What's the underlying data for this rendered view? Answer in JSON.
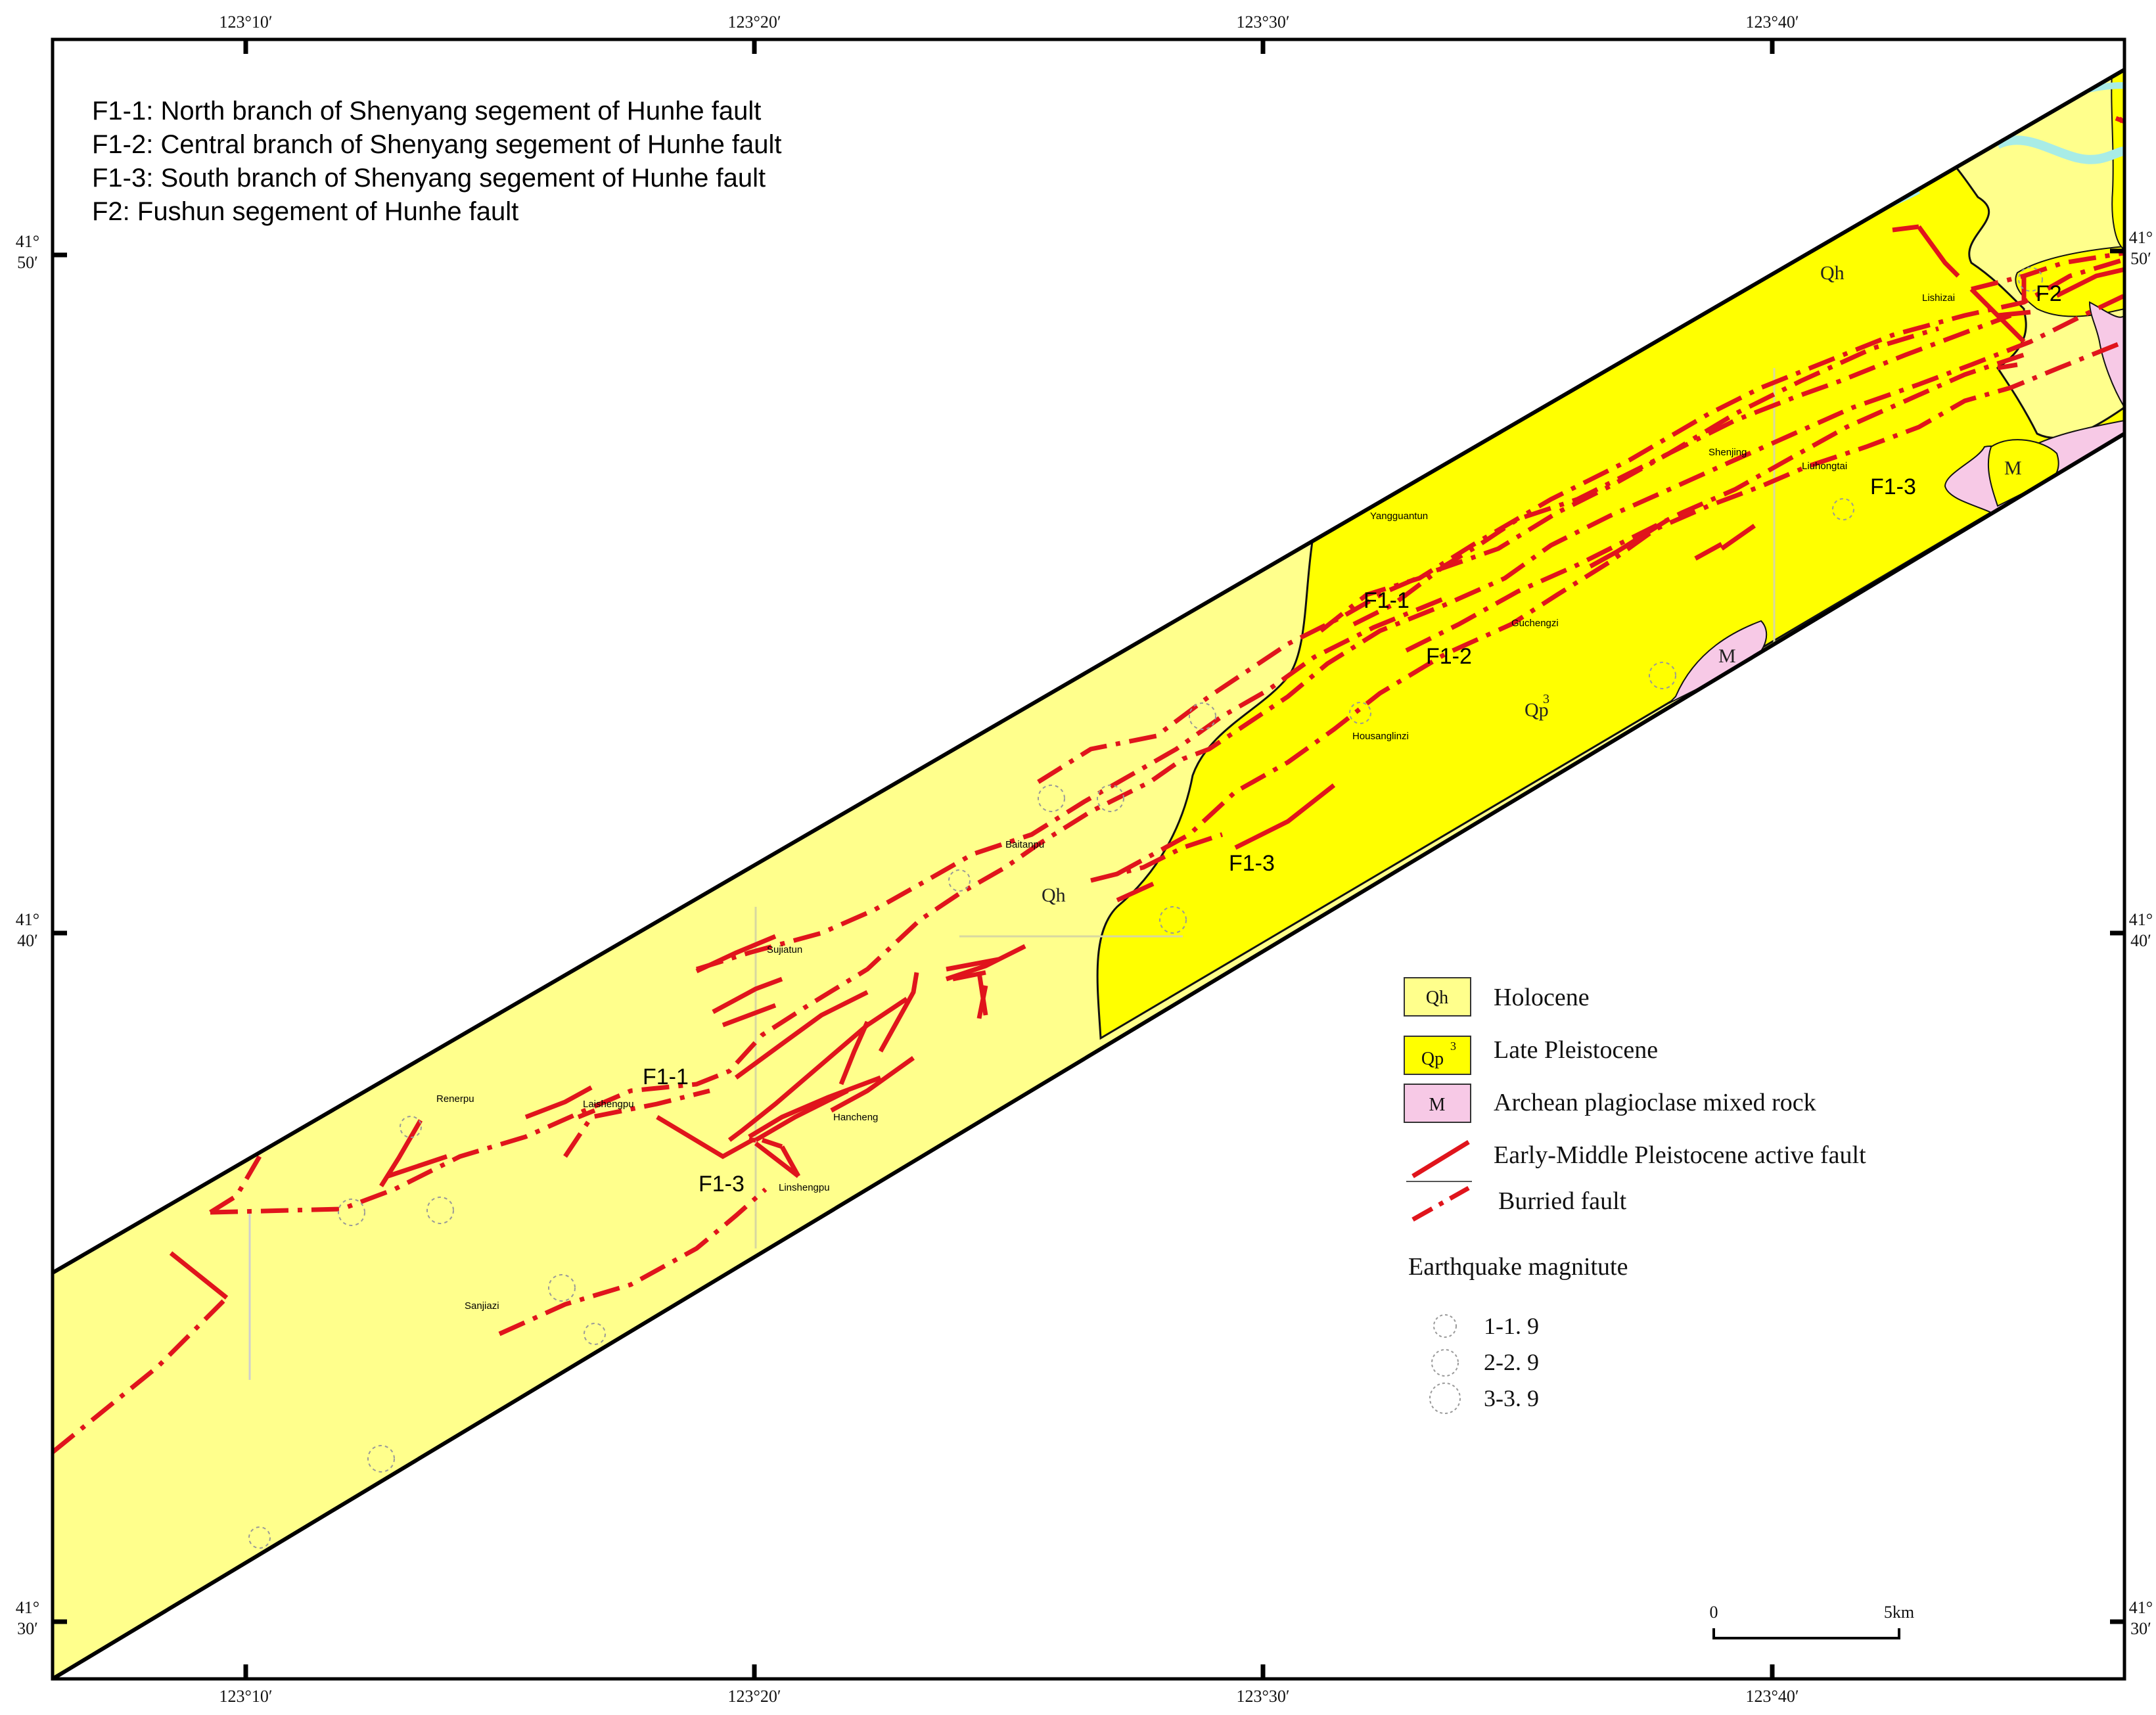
{
  "header": {
    "lines": [
      "F1-1: North branch of Shenyang segement of Hunhe fault",
      "F1-2: Central branch of Shenyang segement of Hunhe fault",
      "F1-3: South branch of Shenyang segement of Hunhe fault",
      "F2:  Fushun segement of Hunhe fault"
    ]
  },
  "axes": {
    "longitude_top": [
      "123°10′",
      "123°20′",
      "123°30′",
      "123°40′"
    ],
    "longitude_bottom": [
      "123°10′",
      "123°20′",
      "123°30′",
      "123°40′"
    ],
    "latitude_left": [
      [
        "41°",
        "50′"
      ],
      [
        "41°",
        "40′"
      ],
      [
        "41°",
        "30′"
      ]
    ],
    "latitude_right": [
      [
        "41°",
        "50′"
      ],
      [
        "41°",
        "40′"
      ],
      [
        "41°",
        "30′"
      ]
    ]
  },
  "places": [
    "Lishizai",
    "Shenjing",
    "Liuhongtai",
    "Yangguantun",
    "Guchengzi",
    "Housanglinzi",
    "Baitanpu",
    "Sujiatun",
    "Renerpu",
    "Laishengpu",
    "Hancheng",
    "Linshengpu",
    "Sanjiazi"
  ],
  "fault_labels": [
    "F2",
    "F1-3",
    "F1-1",
    "F1-2",
    "F1-3",
    "F1-1",
    "F1-3"
  ],
  "unit_labels": [
    "Qh",
    "Qp",
    "3",
    "M",
    "M",
    "Qh"
  ],
  "legend": {
    "items": [
      {
        "symbol": "Qh",
        "label": "Holocene",
        "color": "#ffff8c"
      },
      {
        "symbol": "Qp",
        "symbol_sup": "3",
        "label": "Late Pleistocene",
        "color": "#ffff00"
      },
      {
        "symbol": "M",
        "label": "Archean plagioclase mixed rock",
        "color": "#f7c9e6"
      },
      {
        "label": "Early-Middle Pleistocene active fault"
      },
      {
        "label": "Burried fault"
      }
    ],
    "earthquake_title": "Earthquake magnitute",
    "earthquake_classes": [
      "1-1. 9",
      "2-2. 9",
      "3-3. 9"
    ]
  },
  "scale_bar": {
    "start": "0",
    "end": "5km"
  },
  "colors": {
    "holocene": "#ffff8c",
    "late_pleistocene": "#ffff00",
    "archean": "#f7c9e6",
    "fault": "#e0141c",
    "river": "#a8ece6"
  }
}
